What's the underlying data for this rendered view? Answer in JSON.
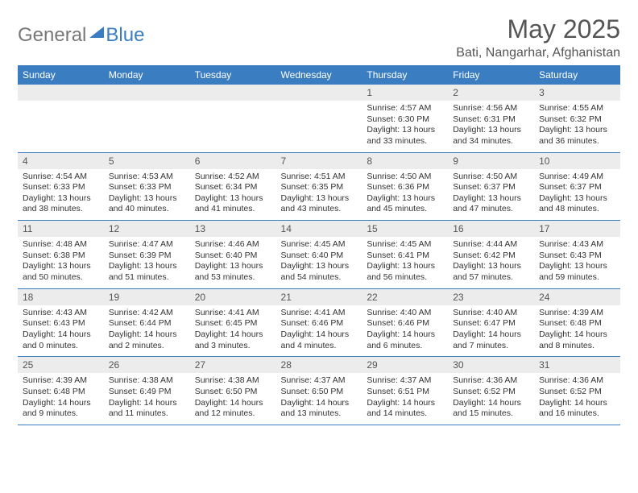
{
  "logo": {
    "word1": "General",
    "word2": "Blue"
  },
  "title": "May 2025",
  "location": "Bati, Nangarhar, Afghanistan",
  "colors": {
    "headerBg": "#3a7ec1",
    "headerText": "#ffffff",
    "dayNumBg": "#ececec",
    "textMuted": "#555555",
    "border": "#3a7ec1"
  },
  "weekdays": [
    "Sunday",
    "Monday",
    "Tuesday",
    "Wednesday",
    "Thursday",
    "Friday",
    "Saturday"
  ],
  "weeks": [
    [
      null,
      null,
      null,
      null,
      {
        "n": "1",
        "sr": "Sunrise: 4:57 AM",
        "ss": "Sunset: 6:30 PM",
        "dl": "Daylight: 13 hours and 33 minutes."
      },
      {
        "n": "2",
        "sr": "Sunrise: 4:56 AM",
        "ss": "Sunset: 6:31 PM",
        "dl": "Daylight: 13 hours and 34 minutes."
      },
      {
        "n": "3",
        "sr": "Sunrise: 4:55 AM",
        "ss": "Sunset: 6:32 PM",
        "dl": "Daylight: 13 hours and 36 minutes."
      }
    ],
    [
      {
        "n": "4",
        "sr": "Sunrise: 4:54 AM",
        "ss": "Sunset: 6:33 PM",
        "dl": "Daylight: 13 hours and 38 minutes."
      },
      {
        "n": "5",
        "sr": "Sunrise: 4:53 AM",
        "ss": "Sunset: 6:33 PM",
        "dl": "Daylight: 13 hours and 40 minutes."
      },
      {
        "n": "6",
        "sr": "Sunrise: 4:52 AM",
        "ss": "Sunset: 6:34 PM",
        "dl": "Daylight: 13 hours and 41 minutes."
      },
      {
        "n": "7",
        "sr": "Sunrise: 4:51 AM",
        "ss": "Sunset: 6:35 PM",
        "dl": "Daylight: 13 hours and 43 minutes."
      },
      {
        "n": "8",
        "sr": "Sunrise: 4:50 AM",
        "ss": "Sunset: 6:36 PM",
        "dl": "Daylight: 13 hours and 45 minutes."
      },
      {
        "n": "9",
        "sr": "Sunrise: 4:50 AM",
        "ss": "Sunset: 6:37 PM",
        "dl": "Daylight: 13 hours and 47 minutes."
      },
      {
        "n": "10",
        "sr": "Sunrise: 4:49 AM",
        "ss": "Sunset: 6:37 PM",
        "dl": "Daylight: 13 hours and 48 minutes."
      }
    ],
    [
      {
        "n": "11",
        "sr": "Sunrise: 4:48 AM",
        "ss": "Sunset: 6:38 PM",
        "dl": "Daylight: 13 hours and 50 minutes."
      },
      {
        "n": "12",
        "sr": "Sunrise: 4:47 AM",
        "ss": "Sunset: 6:39 PM",
        "dl": "Daylight: 13 hours and 51 minutes."
      },
      {
        "n": "13",
        "sr": "Sunrise: 4:46 AM",
        "ss": "Sunset: 6:40 PM",
        "dl": "Daylight: 13 hours and 53 minutes."
      },
      {
        "n": "14",
        "sr": "Sunrise: 4:45 AM",
        "ss": "Sunset: 6:40 PM",
        "dl": "Daylight: 13 hours and 54 minutes."
      },
      {
        "n": "15",
        "sr": "Sunrise: 4:45 AM",
        "ss": "Sunset: 6:41 PM",
        "dl": "Daylight: 13 hours and 56 minutes."
      },
      {
        "n": "16",
        "sr": "Sunrise: 4:44 AM",
        "ss": "Sunset: 6:42 PM",
        "dl": "Daylight: 13 hours and 57 minutes."
      },
      {
        "n": "17",
        "sr": "Sunrise: 4:43 AM",
        "ss": "Sunset: 6:43 PM",
        "dl": "Daylight: 13 hours and 59 minutes."
      }
    ],
    [
      {
        "n": "18",
        "sr": "Sunrise: 4:43 AM",
        "ss": "Sunset: 6:43 PM",
        "dl": "Daylight: 14 hours and 0 minutes."
      },
      {
        "n": "19",
        "sr": "Sunrise: 4:42 AM",
        "ss": "Sunset: 6:44 PM",
        "dl": "Daylight: 14 hours and 2 minutes."
      },
      {
        "n": "20",
        "sr": "Sunrise: 4:41 AM",
        "ss": "Sunset: 6:45 PM",
        "dl": "Daylight: 14 hours and 3 minutes."
      },
      {
        "n": "21",
        "sr": "Sunrise: 4:41 AM",
        "ss": "Sunset: 6:46 PM",
        "dl": "Daylight: 14 hours and 4 minutes."
      },
      {
        "n": "22",
        "sr": "Sunrise: 4:40 AM",
        "ss": "Sunset: 6:46 PM",
        "dl": "Daylight: 14 hours and 6 minutes."
      },
      {
        "n": "23",
        "sr": "Sunrise: 4:40 AM",
        "ss": "Sunset: 6:47 PM",
        "dl": "Daylight: 14 hours and 7 minutes."
      },
      {
        "n": "24",
        "sr": "Sunrise: 4:39 AM",
        "ss": "Sunset: 6:48 PM",
        "dl": "Daylight: 14 hours and 8 minutes."
      }
    ],
    [
      {
        "n": "25",
        "sr": "Sunrise: 4:39 AM",
        "ss": "Sunset: 6:48 PM",
        "dl": "Daylight: 14 hours and 9 minutes."
      },
      {
        "n": "26",
        "sr": "Sunrise: 4:38 AM",
        "ss": "Sunset: 6:49 PM",
        "dl": "Daylight: 14 hours and 11 minutes."
      },
      {
        "n": "27",
        "sr": "Sunrise: 4:38 AM",
        "ss": "Sunset: 6:50 PM",
        "dl": "Daylight: 14 hours and 12 minutes."
      },
      {
        "n": "28",
        "sr": "Sunrise: 4:37 AM",
        "ss": "Sunset: 6:50 PM",
        "dl": "Daylight: 14 hours and 13 minutes."
      },
      {
        "n": "29",
        "sr": "Sunrise: 4:37 AM",
        "ss": "Sunset: 6:51 PM",
        "dl": "Daylight: 14 hours and 14 minutes."
      },
      {
        "n": "30",
        "sr": "Sunrise: 4:36 AM",
        "ss": "Sunset: 6:52 PM",
        "dl": "Daylight: 14 hours and 15 minutes."
      },
      {
        "n": "31",
        "sr": "Sunrise: 4:36 AM",
        "ss": "Sunset: 6:52 PM",
        "dl": "Daylight: 14 hours and 16 minutes."
      }
    ]
  ]
}
